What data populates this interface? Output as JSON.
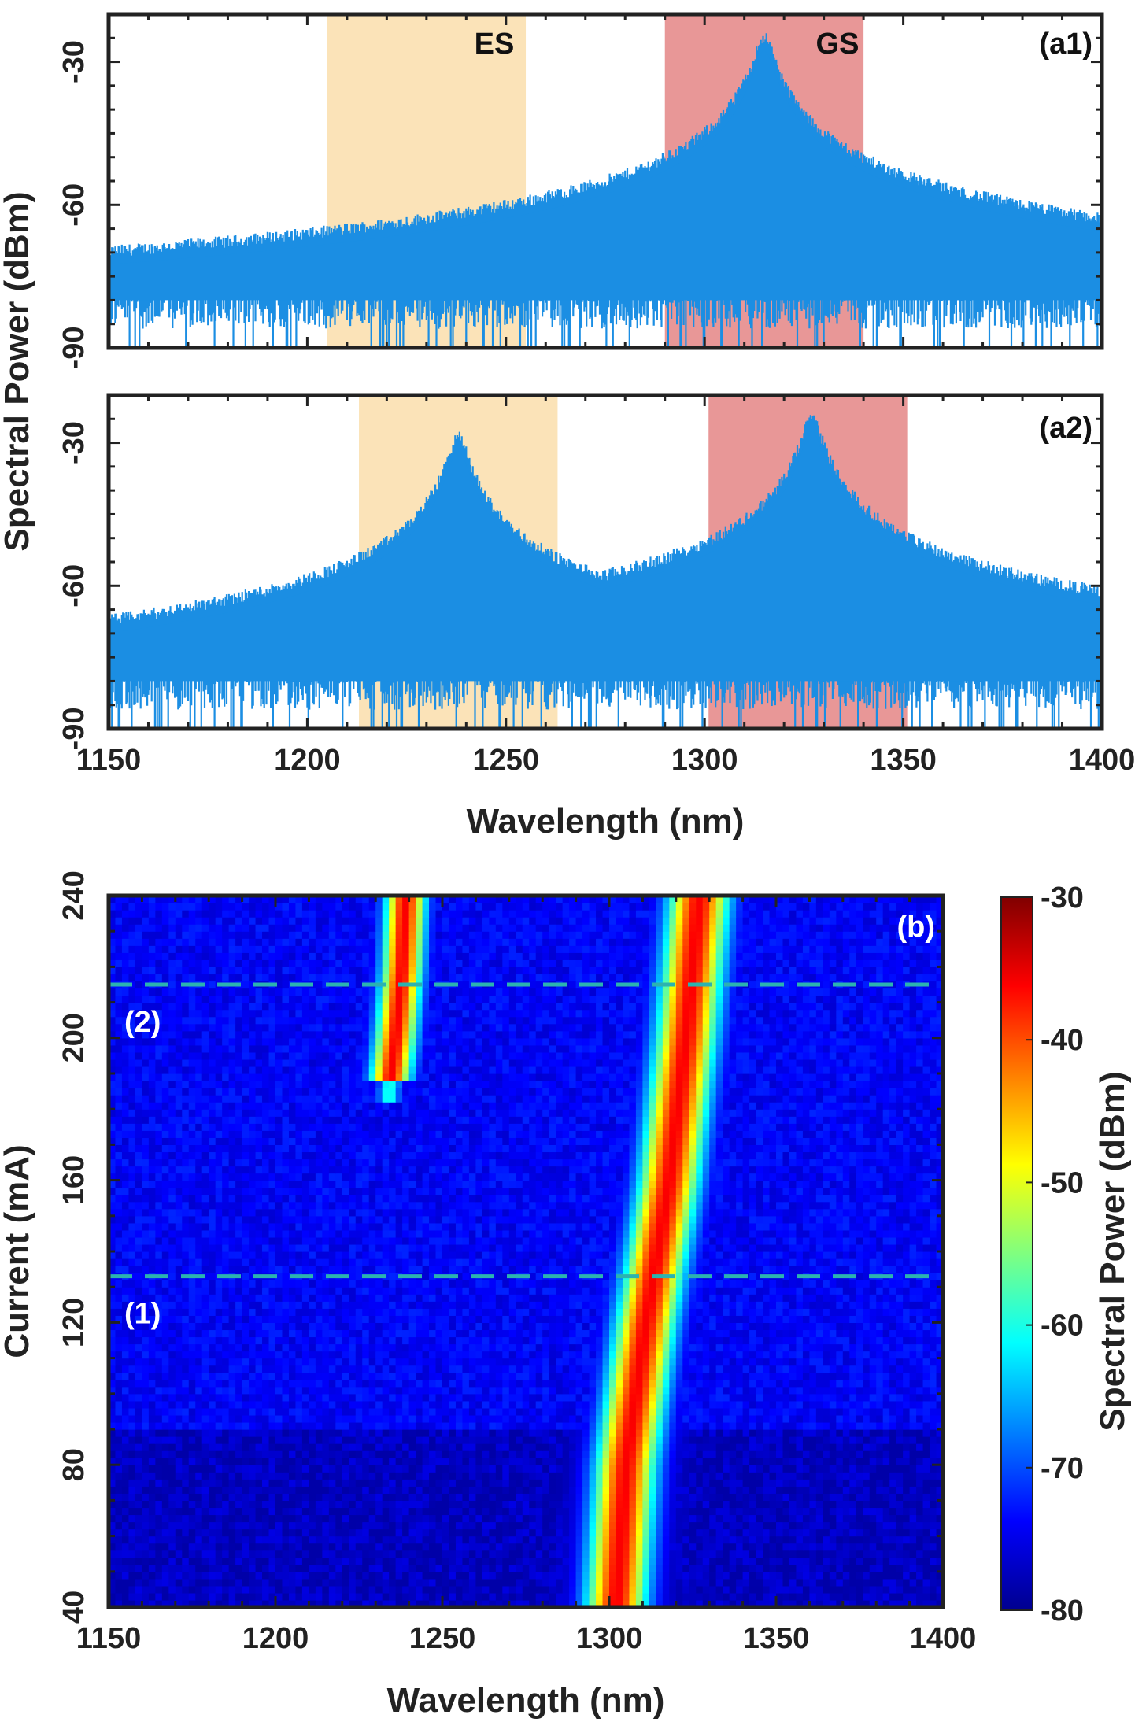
{
  "chart_data": [
    {
      "type": "line",
      "panel": "(a1)",
      "xlim": [
        1150,
        1400
      ],
      "ylim": [
        -90,
        -20
      ],
      "yticks": [
        -90,
        -60,
        -30
      ],
      "grid": false,
      "ylabel": "Spectral Power (dBm)",
      "bands": [
        {
          "label": "ES",
          "range": [
            1205,
            1255
          ],
          "color": "#fbe3b8"
        },
        {
          "label": "GS",
          "range": [
            1290,
            1340
          ],
          "color": "#e89797"
        }
      ],
      "series": [
        {
          "color": "#1b8ee3",
          "peaks": [
            {
              "x": 1315,
              "y": -26
            },
            {
              "x": 1230,
              "y": -76
            },
            {
              "x": 1362,
              "y": -77
            }
          ],
          "noise_floor": -80,
          "values_x": [
            1150,
            1180,
            1205,
            1230,
            1255,
            1280,
            1300,
            1310,
            1315,
            1320,
            1330,
            1345,
            1362,
            1380,
            1400
          ],
          "values_y": [
            -82,
            -81,
            -79,
            -76,
            -78,
            -82,
            -72,
            -55,
            -26,
            -52,
            -70,
            -81,
            -77,
            -82,
            -83
          ]
        }
      ]
    },
    {
      "type": "line",
      "panel": "(a2)",
      "xlim": [
        1150,
        1400
      ],
      "ylim": [
        -90,
        -20
      ],
      "xticks": [
        1150,
        1200,
        1250,
        1300,
        1350,
        1400
      ],
      "yticks": [
        -90,
        -60,
        -30
      ],
      "grid": false,
      "xlabel": "Wavelength (nm)",
      "bands": [
        {
          "label": "",
          "range": [
            1213,
            1263
          ],
          "color": "#fbe3b8"
        },
        {
          "label": "",
          "range": [
            1301,
            1351
          ],
          "color": "#e89797"
        }
      ],
      "series": [
        {
          "color": "#1b8ee3",
          "peaks": [
            {
              "x": 1238,
              "y": -30
            },
            {
              "x": 1327,
              "y": -26
            },
            {
              "x": 1362,
              "y": -77
            }
          ],
          "noise_floor": -80,
          "values_x": [
            1150,
            1180,
            1210,
            1230,
            1238,
            1246,
            1265,
            1290,
            1310,
            1320,
            1327,
            1334,
            1345,
            1362,
            1380,
            1400
          ],
          "values_y": [
            -80,
            -83,
            -80,
            -70,
            -30,
            -66,
            -78,
            -82,
            -70,
            -55,
            -26,
            -52,
            -72,
            -77,
            -82,
            -83
          ]
        }
      ]
    },
    {
      "type": "heatmap",
      "panel": "(b)",
      "xlim": [
        1150,
        1400
      ],
      "ylim": [
        40,
        240
      ],
      "xticks": [
        1150,
        1200,
        1250,
        1300,
        1350,
        1400
      ],
      "yticks": [
        40,
        80,
        120,
        160,
        200,
        240
      ],
      "xlabel": "Wavelength (nm)",
      "ylabel": "Current (mA)",
      "colorbar": {
        "label": "Spectral Power (dBm)",
        "range": [
          -80,
          -30
        ],
        "ticks": [
          -80,
          -70,
          -60,
          -50,
          -40,
          -30
        ],
        "colormap": "jet"
      },
      "background_level": -72,
      "gs_ridge": {
        "current": [
          40,
          80,
          120,
          160,
          200,
          240
        ],
        "wavelength": [
          1302,
          1305,
          1311,
          1318,
          1323,
          1327
        ],
        "peak_dBm": -30
      },
      "es_ridge": {
        "current": [
          185,
          200,
          220,
          240
        ],
        "wavelength": [
          1234,
          1236,
          1238,
          1239
        ],
        "peak_dBm": -30
      },
      "reference_lines": [
        {
          "label": "(1)",
          "current": 133
        },
        {
          "label": "(2)",
          "current": 215
        }
      ]
    }
  ]
}
